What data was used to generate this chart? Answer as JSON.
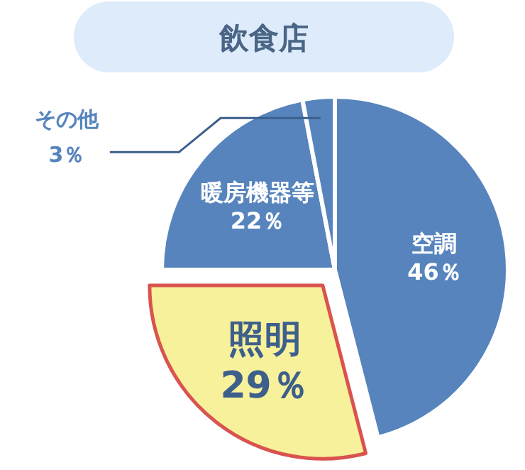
{
  "chart_data": {
    "type": "pie",
    "title": "飲食店",
    "categories": [
      "空調",
      "照明",
      "暖房機器等",
      "その他"
    ],
    "values": [
      46,
      29,
      22,
      3
    ],
    "colors": [
      "#5784bd",
      "#f8f19b",
      "#5784bd",
      "#5784bd"
    ],
    "value_labels": [
      "46％",
      "29％",
      "22％",
      "3％"
    ]
  }
}
